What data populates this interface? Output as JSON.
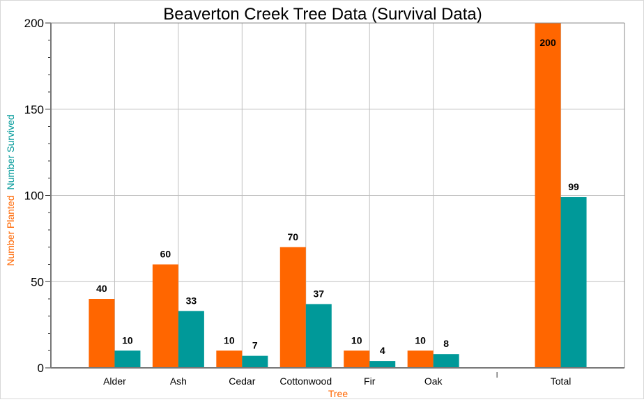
{
  "chart_data": {
    "type": "bar",
    "title": "Beaverton Creek Tree Data (Survival Data)",
    "xlabel": "Tree",
    "ylabel_parts": [
      {
        "text": "Number Planted",
        "color": "#ff6600"
      },
      {
        "text": "Number Survived",
        "color": "#009999"
      }
    ],
    "categories": [
      "Alder",
      "Ash",
      "Cedar",
      "Cottonwood",
      "Fir",
      "Oak",
      "",
      "Total"
    ],
    "series": [
      {
        "name": "Number Planted",
        "color": "#ff6600",
        "values": [
          40,
          60,
          10,
          70,
          10,
          10,
          null,
          200
        ]
      },
      {
        "name": "Number Survived",
        "color": "#009999",
        "values": [
          10,
          33,
          7,
          37,
          4,
          8,
          null,
          99
        ]
      }
    ],
    "ylim": [
      0,
      200
    ],
    "yticks": [
      0,
      50,
      100,
      150,
      200
    ],
    "grid": true,
    "data_labels": true
  }
}
